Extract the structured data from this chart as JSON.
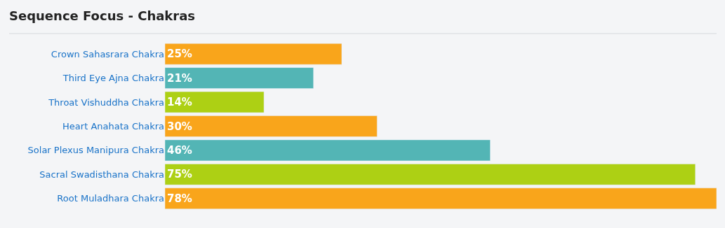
{
  "chart_data": {
    "type": "bar",
    "orientation": "horizontal",
    "title": "Sequence Focus - Chakras",
    "categories": [
      "Crown Sahasrara Chakra",
      "Third Eye Ajna Chakra",
      "Throat Vishuddha Chakra",
      "Heart Anahata Chakra",
      "Solar Plexus Manipura Chakra",
      "Sacral Swadisthana Chakra",
      "Root Muladhara Chakra"
    ],
    "values": [
      25,
      21,
      14,
      30,
      46,
      75,
      78
    ],
    "value_labels": [
      "25%",
      "21%",
      "14%",
      "30%",
      "46%",
      "75%",
      "78%"
    ],
    "colors": [
      "#f9a51b",
      "#53b5b5",
      "#add014",
      "#f9a51b",
      "#53b5b5",
      "#add014",
      "#f9a51b"
    ]
  }
}
